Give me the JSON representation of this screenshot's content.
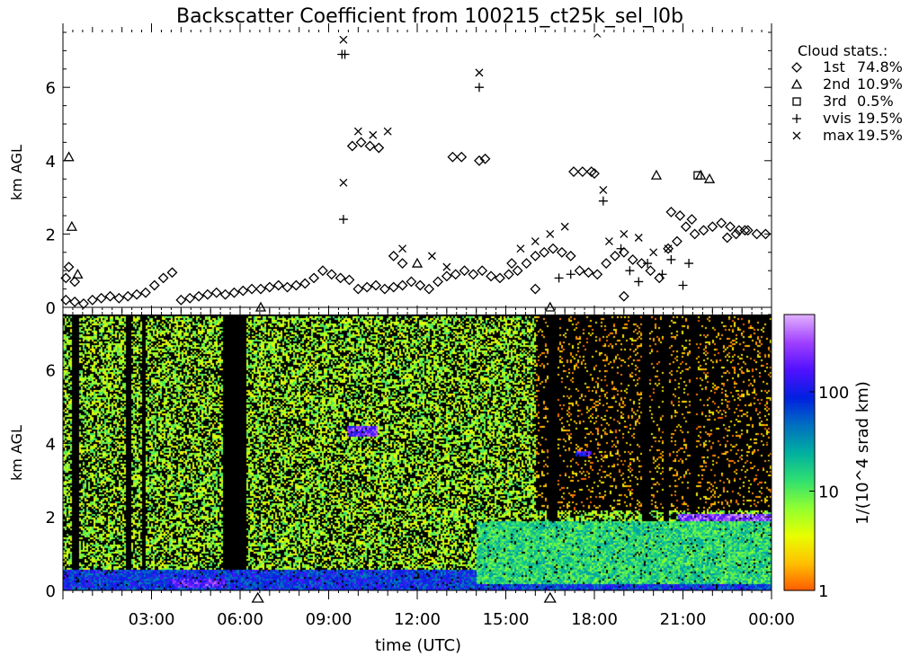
{
  "chart_data": [
    {
      "type": "scatter",
      "title": "Backscatter Coefficient from 100215_ct25k_sel_l0b",
      "ylabel": "km AGL",
      "xlim": [
        0,
        24
      ],
      "ylim": [
        0,
        7.5
      ],
      "y_ticks": [
        0,
        2,
        4,
        6
      ],
      "legend": {
        "placement": "right",
        "title": "Cloud stats.:",
        "entries": [
          {
            "symbol": "diamond",
            "label": "1st",
            "value": "74.8%"
          },
          {
            "symbol": "triangle",
            "label": "2nd",
            "value": "10.9%"
          },
          {
            "symbol": "square",
            "label": "3rd",
            "value": "0.5%"
          },
          {
            "symbol": "plus",
            "label": "vvis",
            "value": "19.5%"
          },
          {
            "symbol": "cross",
            "label": "max",
            "value": "19.5%"
          }
        ]
      },
      "series": [
        {
          "symbol": "diamond",
          "x": [
            0.1,
            0.4,
            0.7,
            1.0,
            1.3,
            1.6,
            1.9,
            2.2,
            2.5,
            2.8,
            3.1,
            3.4,
            3.7,
            4.0,
            4.3,
            4.6,
            4.9,
            5.2,
            5.5,
            5.8,
            6.1,
            6.4,
            6.7,
            7.0,
            7.3,
            7.6,
            7.9,
            8.2,
            8.5,
            8.8,
            9.1,
            9.4,
            9.7,
            10.0,
            10.3,
            10.6,
            10.9,
            11.2,
            11.5,
            11.8,
            12.1,
            12.4,
            12.7,
            13.0,
            13.3,
            13.6,
            13.9,
            14.2,
            14.5,
            14.8,
            15.1,
            15.4,
            15.7,
            16.0,
            16.3,
            16.6,
            16.9,
            17.2,
            17.5,
            17.8,
            18.1,
            18.4,
            18.7,
            19.0,
            19.3,
            19.6,
            19.9,
            20.2,
            20.5,
            20.8,
            21.1,
            21.4,
            21.7,
            22.0,
            22.3,
            22.6,
            22.9,
            23.2,
            23.5,
            23.8,
            0.1,
            0.2,
            0.4,
            9.8,
            10.1,
            10.4,
            10.7,
            13.2,
            13.5,
            14.1,
            14.3,
            17.3,
            17.6,
            17.9,
            18.0,
            20.6,
            20.9,
            21.3,
            22.5,
            22.8,
            23.1,
            11.2,
            11.5,
            16.0,
            15.2,
            19.0
          ],
          "y": [
            0.2,
            0.15,
            0.1,
            0.2,
            0.25,
            0.3,
            0.25,
            0.3,
            0.35,
            0.4,
            0.6,
            0.8,
            0.95,
            0.2,
            0.25,
            0.3,
            0.35,
            0.4,
            0.35,
            0.4,
            0.45,
            0.5,
            0.5,
            0.55,
            0.6,
            0.55,
            0.6,
            0.65,
            0.8,
            1.0,
            0.9,
            0.8,
            0.75,
            0.5,
            0.55,
            0.6,
            0.5,
            0.55,
            0.6,
            0.7,
            0.6,
            0.5,
            0.7,
            0.85,
            0.9,
            1.0,
            0.9,
            1.0,
            0.85,
            0.8,
            0.9,
            1.0,
            1.2,
            1.4,
            1.5,
            1.6,
            1.5,
            1.4,
            1.0,
            0.95,
            0.9,
            1.2,
            1.4,
            1.5,
            1.3,
            1.2,
            1.0,
            0.8,
            1.6,
            1.8,
            2.2,
            2.0,
            2.1,
            2.2,
            2.3,
            2.2,
            2.1,
            2.1,
            2.0,
            2.0,
            0.8,
            1.1,
            0.7,
            4.4,
            4.5,
            4.4,
            4.35,
            4.1,
            4.1,
            4.0,
            4.05,
            3.7,
            3.7,
            3.7,
            3.65,
            2.6,
            2.5,
            2.4,
            1.9,
            2.0,
            2.1,
            1.4,
            1.2,
            0.5,
            1.2,
            0.3
          ]
        },
        {
          "symbol": "triangle",
          "x": [
            0.2,
            0.3,
            0.5,
            6.7,
            16.5,
            20.1,
            21.6,
            21.9,
            12.0
          ],
          "y": [
            4.1,
            2.2,
            0.9,
            0.0,
            0.0,
            3.6,
            3.6,
            3.5,
            1.2
          ]
        },
        {
          "symbol": "square",
          "x": [
            21.5
          ],
          "y": [
            3.6
          ]
        },
        {
          "symbol": "plus",
          "x": [
            9.45,
            9.55,
            9.5,
            14.1,
            16.8,
            17.2,
            18.3,
            18.9,
            19.2,
            19.5,
            19.8,
            20.3,
            20.6,
            21.0,
            21.2
          ],
          "y": [
            6.9,
            6.9,
            2.4,
            6.0,
            0.8,
            0.9,
            2.9,
            1.6,
            1.0,
            0.7,
            1.2,
            0.9,
            1.3,
            0.6,
            1.2
          ]
        },
        {
          "symbol": "cross",
          "x": [
            9.5,
            9.5,
            14.1,
            18.3,
            10.0,
            10.5,
            11.0,
            11.5,
            12.5,
            13.0,
            15.5,
            16.0,
            16.5,
            17.0,
            18.5,
            19.0,
            19.5,
            20.0,
            20.5
          ],
          "y": [
            7.3,
            3.4,
            6.4,
            3.2,
            4.8,
            4.7,
            4.8,
            1.6,
            1.4,
            1.1,
            1.6,
            1.8,
            2.0,
            2.2,
            1.8,
            2.0,
            1.9,
            1.5,
            1.6
          ]
        }
      ],
      "annotations": [
        {
          "text": "^",
          "x": 18.1,
          "y": 7.4
        }
      ]
    },
    {
      "type": "heatmap",
      "xlabel": "time (UTC)",
      "ylabel": "km AGL",
      "xlim": [
        0,
        24
      ],
      "ylim": [
        0,
        7.5
      ],
      "x_tick_labels": [
        "03:00",
        "06:00",
        "09:00",
        "12:00",
        "15:00",
        "18:00",
        "21:00",
        "00:00"
      ],
      "x_tick_values": [
        3,
        6,
        9,
        12,
        15,
        18,
        21,
        24
      ],
      "y_ticks": [
        0,
        2,
        4,
        6
      ],
      "markers": [
        {
          "symbol": "triangle",
          "x": 6.6
        },
        {
          "symbol": "triangle",
          "x": 16.5
        }
      ],
      "colorbar": {
        "label": "1/(10^4 srad km)",
        "scale": "log",
        "range": [
          1,
          600
        ],
        "tick_labels": [
          "1",
          "10",
          "100"
        ],
        "tick_values": [
          1,
          10,
          100
        ],
        "colors": [
          "#ff5a00",
          "#ffc000",
          "#e8ff00",
          "#90ff30",
          "#30e070",
          "#00b0a0",
          "#0070c0",
          "#0020e0",
          "#5010ff",
          "#a040ff",
          "#e0b0ff"
        ]
      },
      "data_blocks": [
        {
          "t0": 0,
          "t1": 24,
          "z0": 0.05,
          "z1": 7.5,
          "v": 6
        },
        {
          "t0": 0.3,
          "t1": 0.5,
          "z0": 0,
          "z1": 7.5,
          "v": 0
        },
        {
          "t0": 2.1,
          "t1": 2.3,
          "z0": 0,
          "z1": 7.5,
          "v": 0
        },
        {
          "t0": 2.65,
          "t1": 2.8,
          "z0": 0,
          "z1": 7.5,
          "v": 0
        },
        {
          "t0": 5.4,
          "t1": 6.2,
          "z0": 0.3,
          "z1": 7.5,
          "v": 0
        },
        {
          "t0": 16.0,
          "t1": 24.0,
          "z0": 2.2,
          "z1": 7.5,
          "v": 1.5
        },
        {
          "t0": 16.4,
          "t1": 16.7,
          "z0": 0,
          "z1": 7.5,
          "v": 0
        },
        {
          "t0": 19.6,
          "t1": 19.8,
          "z0": 0,
          "z1": 7.5,
          "v": 0
        },
        {
          "t0": 20.3,
          "t1": 20.5,
          "z0": 0,
          "z1": 7.5,
          "v": 0
        },
        {
          "t0": 21.2,
          "t1": 21.4,
          "z0": 0,
          "z1": 7.5,
          "v": 0
        },
        {
          "t0": 0,
          "t1": 24,
          "z0": 0,
          "z1": 0.6,
          "v": 80
        },
        {
          "t0": 3.7,
          "t1": 5.5,
          "z0": 0.1,
          "z1": 0.35,
          "v": 200
        },
        {
          "t0": 9.6,
          "t1": 10.6,
          "z0": 4.2,
          "z1": 4.5,
          "v": 200
        },
        {
          "t0": 17.3,
          "t1": 17.9,
          "z0": 3.65,
          "z1": 3.8,
          "v": 150
        },
        {
          "t0": 14.0,
          "t1": 24.0,
          "z0": 0.2,
          "z1": 1.9,
          "v": 15
        },
        {
          "t0": 20.8,
          "t1": 24.0,
          "z0": 1.9,
          "z1": 2.1,
          "v": 300
        }
      ]
    }
  ]
}
